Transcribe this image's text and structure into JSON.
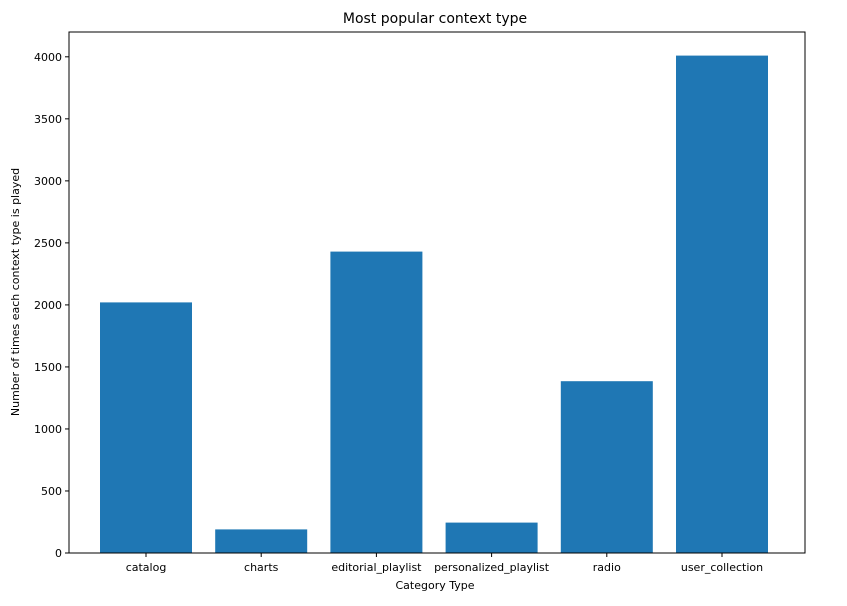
{
  "chart_data": {
    "type": "bar",
    "title": "Most popular context type",
    "xlabel": "Category Type",
    "ylabel": "Number of times each context type is played",
    "categories": [
      "catalog",
      "charts",
      "editorial_playlist",
      "personalized_playlist",
      "radio",
      "user_collection"
    ],
    "values": [
      2020,
      190,
      2430,
      245,
      1385,
      4010
    ],
    "ylim": [
      0,
      4200
    ],
    "yticks": [
      0,
      500,
      1000,
      1500,
      2000,
      2500,
      3000,
      3500,
      4000
    ],
    "grid": false,
    "bar_color": "#1f77b4"
  }
}
